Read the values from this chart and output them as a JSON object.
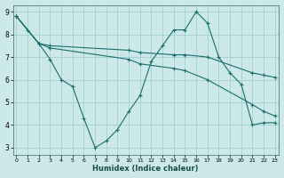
{
  "xlabel": "Humidex (Indice chaleur)",
  "background_color": "#cce8e8",
  "grid_color": "#99cccc",
  "line_color": "#1a6e6e",
  "xlim": [
    -0.3,
    23.3
  ],
  "ylim": [
    2.7,
    9.3
  ],
  "xticks": [
    0,
    1,
    2,
    3,
    4,
    5,
    6,
    7,
    8,
    9,
    10,
    11,
    12,
    13,
    14,
    15,
    16,
    17,
    18,
    19,
    20,
    21,
    22,
    23
  ],
  "yticks": [
    3,
    4,
    5,
    6,
    7,
    8,
    9
  ],
  "series": [
    {
      "x": [
        0,
        1,
        2,
        3,
        4,
        5,
        6,
        7,
        8,
        9,
        10,
        11,
        12,
        13,
        14,
        15,
        16,
        17,
        18,
        19,
        20,
        21,
        22,
        23
      ],
      "y": [
        8.8,
        8.2,
        7.6,
        6.9,
        6.0,
        5.7,
        4.3,
        3.0,
        3.3,
        3.8,
        4.6,
        5.3,
        6.8,
        7.5,
        8.2,
        8.2,
        9.0,
        8.5,
        7.0,
        6.3,
        5.8,
        4.0,
        4.1,
        4.1
      ]
    },
    {
      "x": [
        0,
        2,
        3,
        10,
        11,
        14,
        15,
        17,
        21,
        22,
        23
      ],
      "y": [
        8.8,
        7.6,
        7.5,
        7.3,
        7.2,
        7.1,
        7.1,
        7.0,
        6.3,
        6.2,
        6.1
      ]
    },
    {
      "x": [
        0,
        2,
        3,
        10,
        11,
        14,
        15,
        17,
        21,
        22,
        23
      ],
      "y": [
        8.8,
        7.6,
        7.4,
        6.9,
        6.7,
        6.5,
        6.4,
        6.0,
        4.9,
        4.6,
        4.4
      ]
    }
  ]
}
